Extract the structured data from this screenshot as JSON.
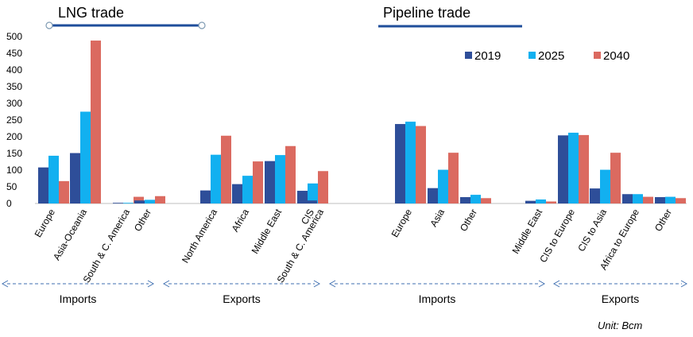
{
  "chart_data": {
    "type": "bar",
    "unit_label": "Unit: Bcm",
    "ylim": [
      0,
      500
    ],
    "yticks": [
      "0",
      "50",
      "100",
      "150",
      "200",
      "250",
      "300",
      "350",
      "400",
      "450",
      "500"
    ],
    "panel_titles": [
      {
        "key": "lng",
        "text": "LNG trade"
      },
      {
        "key": "pipeline",
        "text": "Pipeline trade"
      }
    ],
    "legend": [
      {
        "name": "2019",
        "color": "#2E4E99"
      },
      {
        "name": "2025",
        "color": "#12B0F0"
      },
      {
        "name": "2040",
        "color": "#DB6A60"
      }
    ],
    "categories": [
      {
        "label": "Europe",
        "values": [
          108,
          143,
          67
        ]
      },
      {
        "label": "Asia-Oceania",
        "values": [
          151,
          275,
          488
        ]
      },
      {
        "label": "South & C. America",
        "values": [
          2,
          2,
          20
        ]
      },
      {
        "label": "Other",
        "values": [
          9,
          11,
          22
        ]
      },
      {
        "label": "North America",
        "values": [
          39,
          146,
          203
        ]
      },
      {
        "label": "Africa",
        "values": [
          58,
          83,
          126
        ]
      },
      {
        "label": "Middle East",
        "values": [
          127,
          145,
          172
        ]
      },
      {
        "label": "CIS",
        "values": [
          38,
          60,
          97
        ]
      },
      {
        "label": "South & C. America",
        "values": [
          9,
          0,
          0
        ]
      },
      {
        "label": "Europe",
        "values": [
          238,
          245,
          232
        ]
      },
      {
        "label": "Asia",
        "values": [
          46,
          101,
          152
        ]
      },
      {
        "label": "Other",
        "values": [
          19,
          26,
          16
        ]
      },
      {
        "label": "Middle East",
        "values": [
          8,
          12,
          6
        ]
      },
      {
        "label": "CIS to Europe",
        "values": [
          204,
          212,
          205
        ]
      },
      {
        "label": "CIS to Asia",
        "values": [
          45,
          101,
          152
        ]
      },
      {
        "label": "Africa to Europe",
        "values": [
          28,
          28,
          20
        ]
      },
      {
        "label": "Other",
        "values": [
          19,
          20,
          16
        ]
      }
    ],
    "groups": [
      {
        "label": "Imports"
      },
      {
        "label": "Exports"
      },
      {
        "label": "Imports"
      },
      {
        "label": "Exports"
      }
    ]
  }
}
